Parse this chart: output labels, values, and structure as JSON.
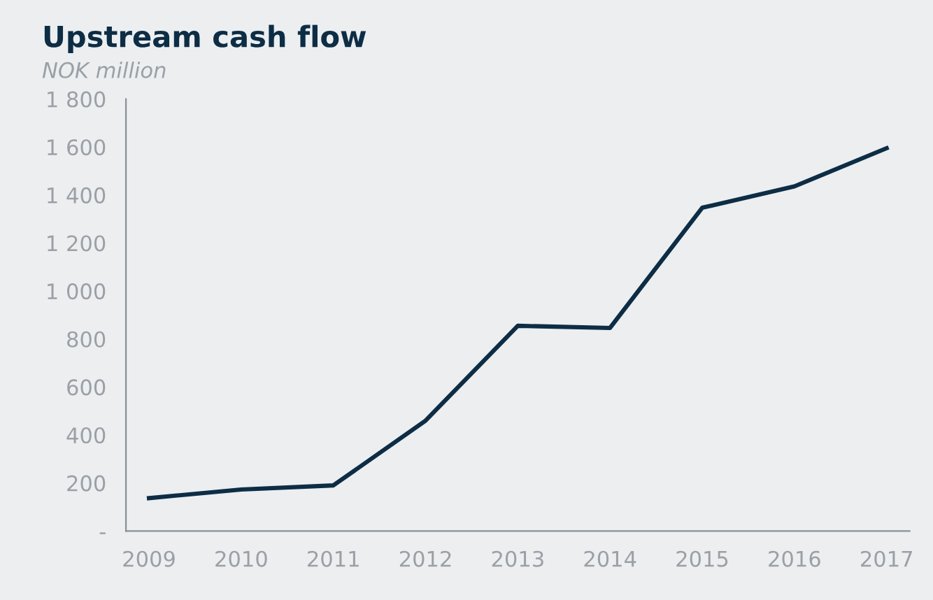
{
  "chart_data": {
    "type": "line",
    "title": "Upstream cash flow",
    "subtitle": "NOK million",
    "categories": [
      "2009",
      "2010",
      "2011",
      "2012",
      "2013",
      "2014",
      "2015",
      "2016",
      "2017"
    ],
    "series": [
      {
        "color": "#0d2d45",
        "values": [
          137,
          173,
          190,
          460,
          855,
          846,
          1347,
          1436,
          1595
        ]
      }
    ],
    "ylim": [
      0,
      1800
    ],
    "yticks": [
      {
        "value": 0,
        "label": "-"
      },
      200,
      400,
      600,
      800,
      {
        "value": 1000,
        "label": "1 000"
      },
      {
        "value": 1200,
        "label": "1 200"
      },
      {
        "value": 1400,
        "label": "1 400"
      },
      {
        "value": 1600,
        "label": "1 600"
      },
      {
        "value": 1800,
        "label": "1 800"
      }
    ],
    "grid": false,
    "legend": false,
    "marker": "none",
    "line_style": "solid"
  }
}
